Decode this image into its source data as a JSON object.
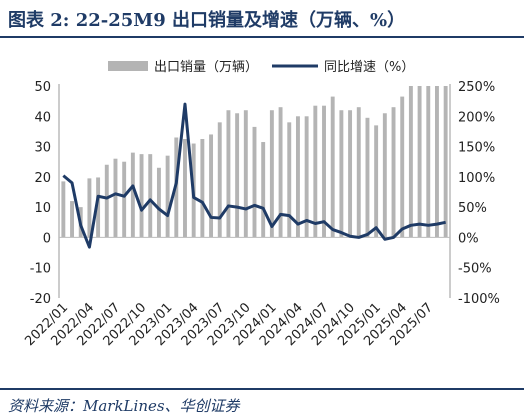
{
  "title": "图表 2:  22-25M9 出口销量及增速（万辆、%）",
  "source": "资料来源：MarkLines、华创证券",
  "colors": {
    "bars": "#b4b4b4",
    "line": "#1f3b66",
    "text": "#1f3b66",
    "axis_text": "#222222"
  },
  "chart_data": {
    "type": "bar",
    "x": [
      "2022/01",
      "2022/02",
      "2022/03",
      "2022/04",
      "2022/05",
      "2022/06",
      "2022/07",
      "2022/08",
      "2022/09",
      "2022/10",
      "2022/11",
      "2022/12",
      "2023/01",
      "2023/02",
      "2023/03",
      "2023/04",
      "2023/05",
      "2023/06",
      "2023/07",
      "2023/08",
      "2023/09",
      "2023/10",
      "2023/11",
      "2023/12",
      "2024/01",
      "2024/02",
      "2024/03",
      "2024/04",
      "2024/05",
      "2024/06",
      "2024/07",
      "2024/08",
      "2024/09",
      "2024/10",
      "2024/11",
      "2024/12",
      "2025/01",
      "2025/02",
      "2025/03",
      "2025/04",
      "2025/05",
      "2025/06",
      "2025/07",
      "2025/08",
      "2025/09"
    ],
    "x_tick_labels": [
      "2022/01",
      "2022/04",
      "2022/07",
      "2022/10",
      "2023/01",
      "2023/04",
      "2023/07",
      "2023/10",
      "2024/01",
      "2024/04",
      "2024/07",
      "2024/10",
      "2025/01",
      "2025/04",
      "2025/07"
    ],
    "series": [
      {
        "name": "出口销量（万辆）",
        "type": "bar",
        "axis": "left",
        "values": [
          18.5,
          12.0,
          10.0,
          19.5,
          19.8,
          24.0,
          26.0,
          25.0,
          28.0,
          27.5,
          27.5,
          23.0,
          27.0,
          33.0,
          32.5,
          31.0,
          32.5,
          34.0,
          38.0,
          42.0,
          41.0,
          42.0,
          36.5,
          31.5,
          42.0,
          43.0,
          38.0,
          40.0,
          40.0,
          43.5,
          43.5,
          46.5,
          42.0,
          42.0,
          43.0,
          39.5,
          37.0,
          41.0,
          43.0,
          46.5,
          50.0,
          50.0,
          50.0,
          50.0,
          50.0
        ]
      },
      {
        "name": "同比增速（%）",
        "type": "line",
        "axis": "right",
        "values": [
          102,
          90,
          20,
          -16,
          68,
          65,
          72,
          68,
          85,
          45,
          62,
          47,
          36,
          90,
          220,
          66,
          58,
          33,
          32,
          52,
          50,
          47,
          53,
          48,
          18,
          38,
          36,
          22,
          28,
          23,
          26,
          13,
          8,
          2,
          0,
          5,
          16,
          -3,
          0,
          14,
          20,
          22,
          20,
          22,
          25
        ]
      }
    ],
    "y_left": {
      "min": -20,
      "max": 50,
      "ticks": [
        "50",
        "40",
        "30",
        "20",
        "10",
        "0",
        "-10",
        "-20"
      ]
    },
    "y_right": {
      "min": -100,
      "max": 250,
      "ticks": [
        "250%",
        "200%",
        "150%",
        "100%",
        "50%",
        "0%",
        "-50%",
        "-100%"
      ]
    },
    "legend": {
      "position": "top",
      "items": [
        "出口销量（万辆）",
        "同比增速（%）"
      ]
    },
    "grid": false
  }
}
